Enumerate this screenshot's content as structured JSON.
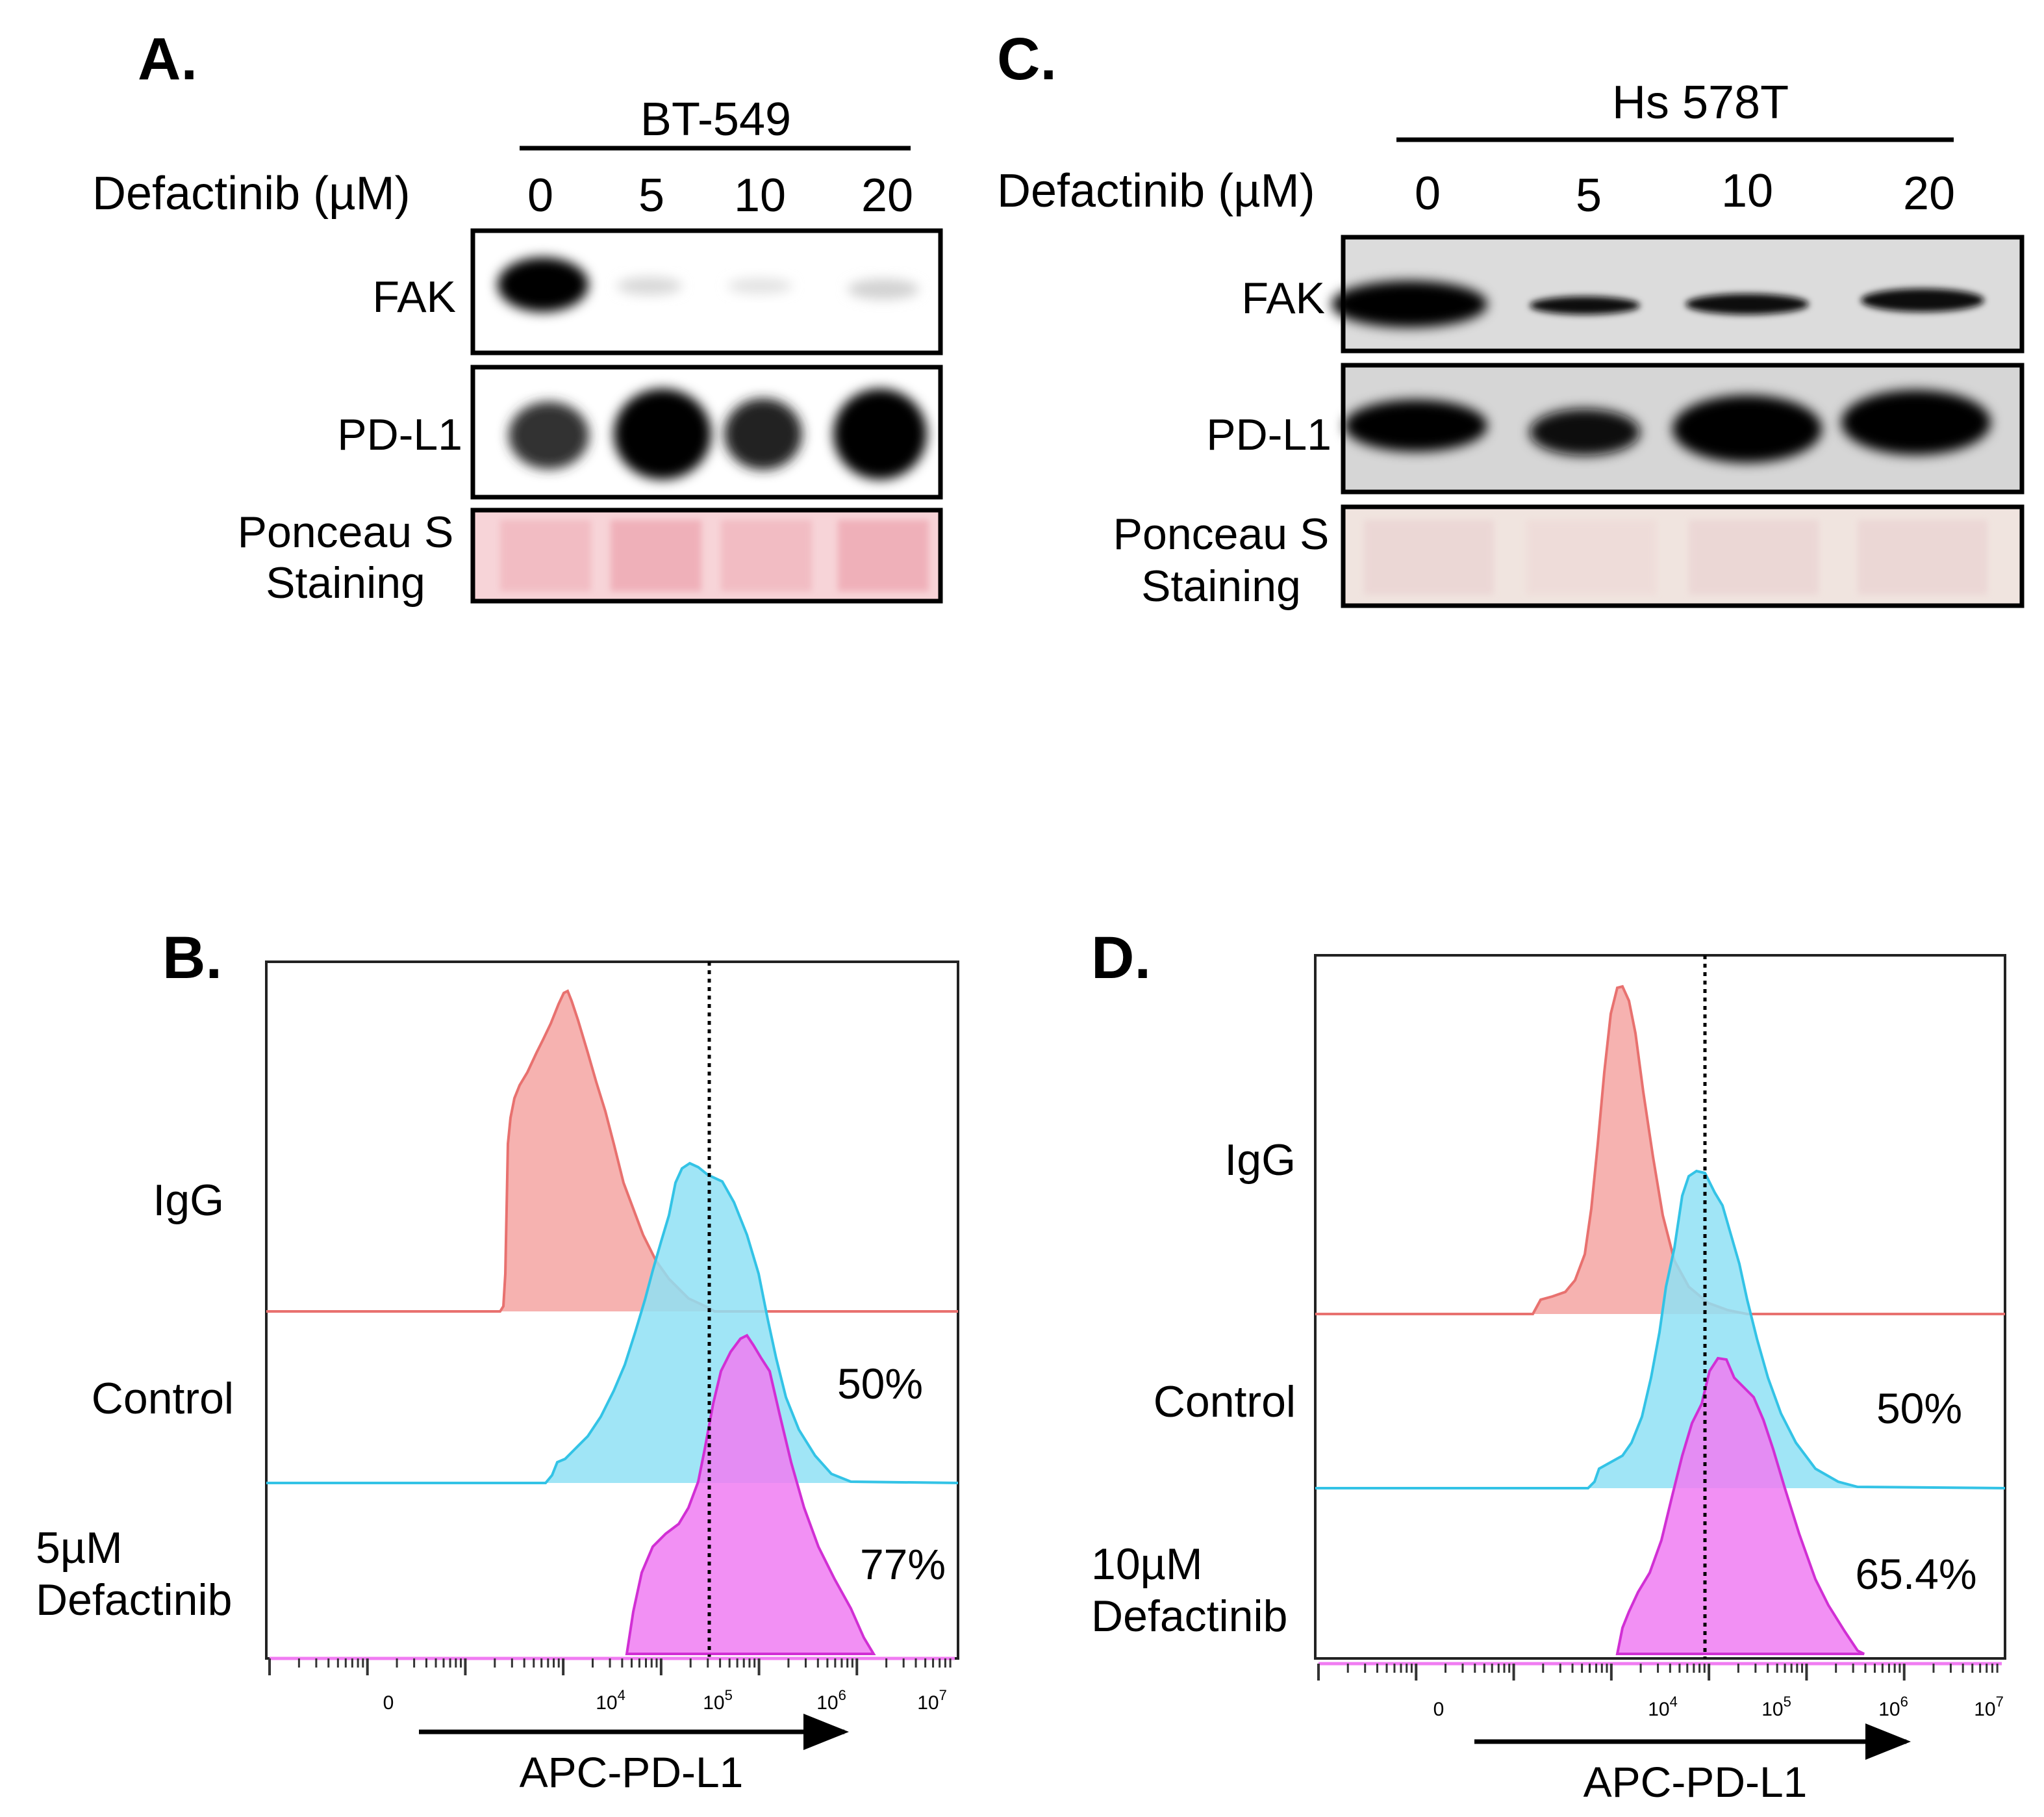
{
  "panels": {
    "A": {
      "letter": "A.",
      "cell_line": "BT-549",
      "treatment_label": "Defactinib (µM)",
      "doses": [
        "0",
        "5",
        "10",
        "20"
      ],
      "blots": [
        {
          "label": "FAK",
          "intensities": [
            1.0,
            0.06,
            0.04,
            0.08
          ]
        },
        {
          "label": "PD-L1",
          "intensities": [
            0.55,
            1.0,
            0.65,
            1.0
          ]
        }
      ],
      "stain_label_line1": "Ponceau S",
      "stain_label_line2": "Staining",
      "stain_color": "#f4c9cf"
    },
    "C": {
      "letter": "C.",
      "cell_line": "Hs 578T",
      "treatment_label": "Defactinib (µM)",
      "doses": [
        "0",
        "5",
        "10",
        "20"
      ],
      "blots": [
        {
          "label": "FAK",
          "intensities": [
            1.0,
            0.35,
            0.5,
            0.55
          ]
        },
        {
          "label": "PD-L1",
          "intensities": [
            0.8,
            0.6,
            1.0,
            1.0
          ]
        }
      ],
      "stain_label_line1": "Ponceau S",
      "stain_label_line2": "Staining",
      "stain_color": "#efe1dc"
    },
    "B": {
      "letter": "B.",
      "rows": [
        {
          "label_line1": "IgG",
          "label_line2": "",
          "color": "#e8716f",
          "fill": "#f4a4a2"
        },
        {
          "label_line1": "Control",
          "label_line2": "",
          "color": "#33c3e6",
          "fill": "#8fe1f5"
        },
        {
          "label_line1": "5µM",
          "label_line2": "Defactinib",
          "color": "#d12fd4",
          "fill": "#f07cf2"
        }
      ],
      "percentages": [
        "50%",
        "77%"
      ],
      "x_ticks": [
        "0",
        "10^4",
        "10^5",
        "10^6",
        "10^7"
      ],
      "xlabel": "APC-PD-L1"
    },
    "D": {
      "letter": "D.",
      "rows": [
        {
          "label_line1": "IgG",
          "label_line2": "",
          "color": "#e8716f",
          "fill": "#f4a4a2"
        },
        {
          "label_line1": "Control",
          "label_line2": "",
          "color": "#33c3e6",
          "fill": "#8fe1f5"
        },
        {
          "label_line1": "10µM",
          "label_line2": "Defactinib",
          "color": "#d12fd4",
          "fill": "#f07cf2"
        }
      ],
      "percentages": [
        "50%",
        "65.4%"
      ],
      "x_ticks": [
        "0",
        "10^4",
        "10^5",
        "10^6",
        "10^7"
      ],
      "xlabel": "APC-PD-L1"
    }
  }
}
